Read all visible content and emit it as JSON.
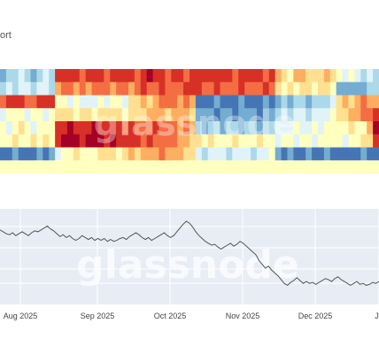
{
  "chart_data": [
    {
      "type": "heatmap",
      "title": "ort",
      "rows": 8,
      "columns_per_row": 62,
      "colors": {
        "deep_red": "#a50026",
        "red": "#d73027",
        "orange": "#f46d43",
        "light_orange": "#fdae61",
        "pale_yellow": "#fee090",
        "cream": "#ffffbf",
        "light_blue": "#e0f3f8",
        "sky": "#abd9e9",
        "blue": "#74add1",
        "mid_blue": "#4575b4",
        "deep_blue": "#313695"
      },
      "values": [
        [
          0.2,
          0.3,
          0.3,
          0.4,
          0.3,
          0.2,
          0.3,
          0.4,
          0.3,
          0.9,
          0.9,
          0.85,
          0.9,
          0.8,
          0.85,
          0.9,
          0.85,
          0.8,
          0.9,
          0.85,
          0.9,
          0.85,
          0.8,
          0.9,
          0.95,
          0.9,
          0.85,
          0.8,
          0.85,
          0.9,
          0.8,
          0.85,
          0.9,
          0.85,
          0.9,
          0.85,
          0.9,
          0.85,
          0.8,
          0.9,
          0.85,
          0.9,
          0.85,
          0.8,
          0.9,
          0.7,
          0.6,
          0.5,
          0.65,
          0.7,
          0.6,
          0.55,
          0.6,
          0.7,
          0.6,
          0.5,
          0.4,
          0.45,
          0.35,
          0.3,
          0.35,
          0.3
        ],
        [
          0.3,
          0.35,
          0.3,
          0.4,
          0.35,
          0.3,
          0.4,
          0.35,
          0.3,
          0.7,
          0.75,
          0.8,
          0.7,
          0.75,
          0.7,
          0.75,
          0.8,
          0.75,
          0.7,
          0.8,
          0.75,
          0.7,
          0.8,
          0.85,
          0.8,
          0.75,
          0.85,
          0.8,
          0.75,
          0.8,
          0.85,
          0.9,
          0.85,
          0.8,
          0.75,
          0.85,
          0.8,
          0.75,
          0.8,
          0.85,
          0.8,
          0.75,
          0.8,
          0.85,
          0.75,
          0.55,
          0.5,
          0.6,
          0.5,
          0.55,
          0.6,
          0.5,
          0.55,
          0.6,
          0.45,
          0.2,
          0.15,
          0.2,
          0.15,
          0.2,
          0.3,
          0.25
        ],
        [
          0.8,
          0.85,
          0.9,
          0.85,
          0.8,
          0.75,
          0.85,
          0.9,
          0.85,
          0.5,
          0.45,
          0.4,
          0.45,
          0.4,
          0.35,
          0.4,
          0.45,
          0.4,
          0.5,
          0.45,
          0.4,
          0.55,
          0.6,
          0.65,
          0.6,
          0.7,
          0.75,
          0.8,
          0.75,
          0.7,
          0.75,
          0.7,
          0.1,
          0.05,
          0.1,
          0.15,
          0.05,
          0.1,
          0.05,
          0.15,
          0.1,
          0.05,
          0.1,
          0.15,
          0.1,
          0.2,
          0.25,
          0.2,
          0.3,
          0.25,
          0.2,
          0.3,
          0.25,
          0.3,
          0.35,
          0.6,
          0.65,
          0.6,
          0.7,
          0.75,
          0.7,
          0.7
        ],
        [
          0.4,
          0.45,
          0.5,
          0.45,
          0.4,
          0.5,
          0.45,
          0.4,
          0.5,
          0.55,
          0.6,
          0.55,
          0.5,
          0.6,
          0.55,
          0.5,
          0.6,
          0.55,
          0.6,
          0.55,
          0.5,
          0.6,
          0.55,
          0.6,
          0.65,
          0.7,
          0.65,
          0.6,
          0.7,
          0.65,
          0.7,
          0.6,
          0.15,
          0.2,
          0.15,
          0.1,
          0.2,
          0.15,
          0.1,
          0.2,
          0.15,
          0.2,
          0.1,
          0.15,
          0.2,
          0.3,
          0.35,
          0.3,
          0.4,
          0.35,
          0.3,
          0.4,
          0.35,
          0.4,
          0.45,
          0.55,
          0.6,
          0.65,
          0.7,
          0.75,
          0.8,
          0.9
        ],
        [
          0.45,
          0.4,
          0.5,
          0.55,
          0.45,
          0.4,
          0.5,
          0.45,
          0.5,
          0.85,
          0.9,
          0.95,
          0.9,
          0.85,
          0.9,
          0.95,
          0.9,
          0.85,
          0.9,
          0.85,
          0.8,
          0.85,
          0.8,
          0.75,
          0.8,
          0.85,
          0.8,
          0.75,
          0.8,
          0.7,
          0.75,
          0.7,
          0.25,
          0.2,
          0.3,
          0.25,
          0.2,
          0.3,
          0.25,
          0.2,
          0.3,
          0.25,
          0.2,
          0.3,
          0.25,
          0.35,
          0.4,
          0.35,
          0.45,
          0.4,
          0.35,
          0.45,
          0.4,
          0.45,
          0.5,
          0.45,
          0.5,
          0.55,
          0.5,
          0.45,
          0.7,
          0.95
        ],
        [
          0.5,
          0.45,
          0.55,
          0.5,
          0.45,
          0.55,
          0.5,
          0.55,
          0.5,
          0.9,
          0.95,
          1.0,
          0.95,
          0.9,
          0.95,
          1.0,
          0.95,
          0.9,
          0.95,
          0.9,
          0.85,
          0.9,
          0.85,
          0.8,
          0.85,
          0.8,
          0.75,
          0.8,
          0.75,
          0.7,
          0.65,
          0.6,
          0.55,
          0.5,
          0.55,
          0.5,
          0.45,
          0.5,
          0.55,
          0.5,
          0.45,
          0.5,
          0.55,
          0.5,
          0.45,
          0.4,
          0.45,
          0.5,
          0.4,
          0.45,
          0.5,
          0.4,
          0.45,
          0.5,
          0.45,
          0.5,
          0.4,
          0.45,
          0.5,
          0.55,
          0.6,
          0.85
        ],
        [
          0.05,
          0.1,
          0.15,
          0.1,
          0.05,
          0.1,
          0.15,
          0.1,
          0.2,
          0.4,
          0.45,
          0.5,
          0.55,
          0.5,
          0.45,
          0.5,
          0.55,
          0.6,
          0.55,
          0.5,
          0.6,
          0.65,
          0.6,
          0.7,
          0.65,
          0.7,
          0.75,
          0.7,
          0.65,
          0.7,
          0.6,
          0.55,
          0.35,
          0.3,
          0.35,
          0.4,
          0.35,
          0.3,
          0.35,
          0.4,
          0.35,
          0.3,
          0.35,
          0.4,
          0.45,
          0.15,
          0.1,
          0.15,
          0.05,
          0.1,
          0.15,
          0.05,
          0.1,
          0.15,
          0.1,
          0.05,
          0.1,
          0.05,
          0.1,
          0.15,
          0.1,
          0.05
        ],
        [
          0.45,
          0.5,
          0.45,
          0.5,
          0.45,
          0.5,
          0.45,
          0.5,
          0.45,
          0.5,
          0.45,
          0.5,
          0.45,
          0.5,
          0.45,
          0.5,
          0.45,
          0.5,
          0.45,
          0.5,
          0.45,
          0.5,
          0.45,
          0.5,
          0.45,
          0.5,
          0.45,
          0.5,
          0.45,
          0.5,
          0.45,
          0.5,
          0.45,
          0.5,
          0.45,
          0.5,
          0.45,
          0.5,
          0.45,
          0.5,
          0.45,
          0.5,
          0.45,
          0.5,
          0.45,
          0.5,
          0.45,
          0.5,
          0.45,
          0.5,
          0.45,
          0.5,
          0.45,
          0.5,
          0.45,
          0.5,
          0.45,
          0.5,
          0.45,
          0.5,
          0.45,
          0.5
        ]
      ],
      "watermark": "glassnode"
    },
    {
      "type": "line",
      "x_ticks": [
        "Aug 2025",
        "Sep 2025",
        "Oct 2025",
        "Nov 2025",
        "Dec 2025",
        "Ja"
      ],
      "grid": true,
      "colors": {
        "background": "#e8ecf5",
        "line": "#555555",
        "grid": "#ffffff"
      },
      "series": [
        {
          "values": [
            0.78,
            0.76,
            0.74,
            0.73,
            0.75,
            0.72,
            0.74,
            0.76,
            0.74,
            0.72,
            0.75,
            0.77,
            0.76,
            0.78,
            0.8,
            0.82,
            0.79,
            0.77,
            0.74,
            0.71,
            0.73,
            0.7,
            0.72,
            0.69,
            0.67,
            0.69,
            0.72,
            0.7,
            0.68,
            0.7,
            0.67,
            0.69,
            0.67,
            0.69,
            0.66,
            0.68,
            0.66,
            0.67,
            0.69,
            0.7,
            0.68,
            0.71,
            0.73,
            0.75,
            0.73,
            0.7,
            0.68,
            0.7,
            0.67,
            0.69,
            0.71,
            0.73,
            0.75,
            0.72,
            0.7,
            0.72,
            0.76,
            0.8,
            0.84,
            0.87,
            0.85,
            0.81,
            0.76,
            0.72,
            0.69,
            0.66,
            0.64,
            0.62,
            0.63,
            0.6,
            0.58,
            0.6,
            0.62,
            0.64,
            0.61,
            0.63,
            0.66,
            0.64,
            0.61,
            0.58,
            0.55,
            0.52,
            0.46,
            0.42,
            0.38,
            0.4,
            0.36,
            0.33,
            0.3,
            0.26,
            0.22,
            0.2,
            0.23,
            0.25,
            0.28,
            0.25,
            0.22,
            0.24,
            0.22,
            0.23,
            0.21,
            0.23,
            0.25,
            0.27,
            0.26,
            0.24,
            0.27,
            0.29,
            0.26,
            0.24,
            0.22,
            0.2,
            0.22,
            0.24,
            0.21,
            0.22,
            0.2,
            0.21,
            0.23,
            0.22,
            0.24
          ]
        }
      ],
      "watermark": "glassnode"
    }
  ]
}
